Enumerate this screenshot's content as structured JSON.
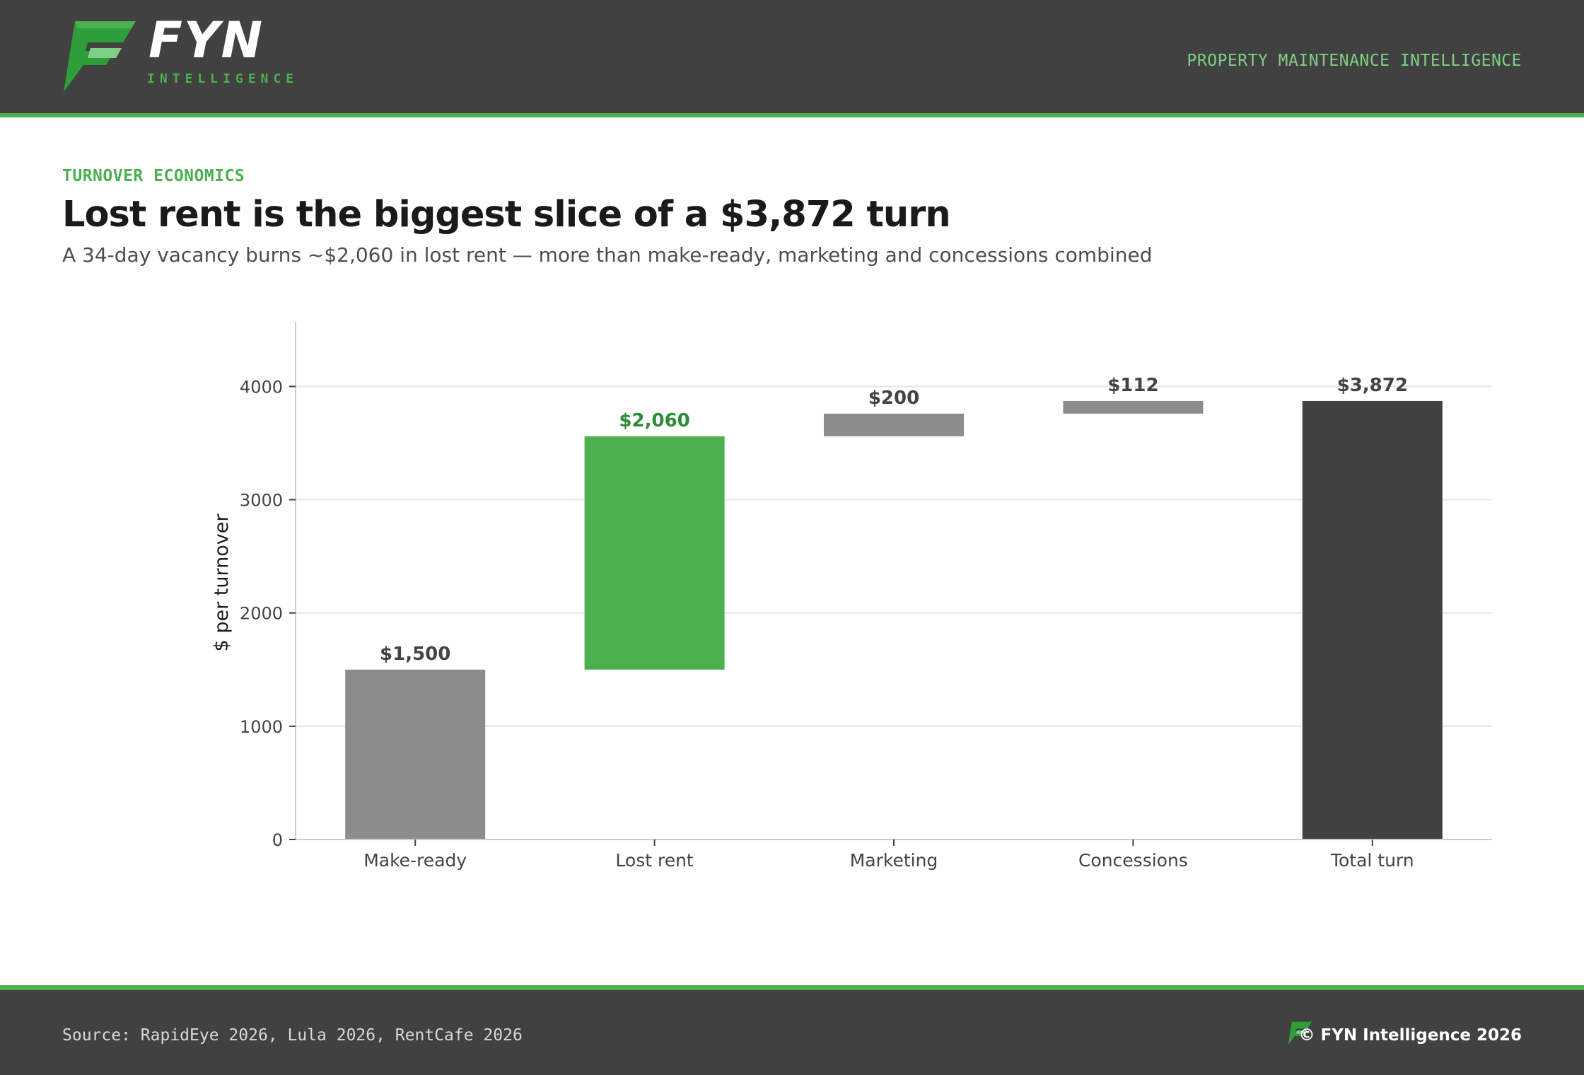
{
  "brand": {
    "name": "FYN",
    "sub": "INTELLIGENCE",
    "tagline": "PROPERTY MAINTENANCE INTELLIGENCE",
    "logo_icon": "fyn-logo-icon",
    "accent": "#4caf50",
    "dark": "#414141"
  },
  "eyebrow": "TURNOVER ECONOMICS",
  "title": "Lost rent is the biggest slice of a $3,872 turn",
  "subtitle": "A 34-day vacancy burns ~$2,060 in lost rent — more than make-ready, marketing and concessions combined",
  "chart_data": {
    "type": "bar",
    "subtype": "waterfall",
    "categories": [
      "Make-ready",
      "Lost rent",
      "Marketing",
      "Concessions",
      "Total turn"
    ],
    "values": [
      1500,
      2060,
      200,
      112,
      3872
    ],
    "value_labels": [
      "$1,500",
      "$2,060",
      "$200",
      "$112",
      "$3,872"
    ],
    "is_total": [
      false,
      false,
      false,
      false,
      true
    ],
    "bar_colors": [
      "#8c8c8c",
      "#4caf50",
      "#8c8c8c",
      "#8c8c8c",
      "#414141"
    ],
    "label_colors": [
      "#444444",
      "#2e8b37",
      "#444444",
      "#444444",
      "#444444"
    ],
    "ylabel": "$ per turnover",
    "xlabel": "",
    "ylim": [
      0,
      4571
    ],
    "yticks": [
      0,
      1000,
      2000,
      3000,
      4000
    ],
    "grid": true,
    "legend": "none"
  },
  "footer": {
    "source": "Source: RapidEye 2026, Lula 2026, RentCafe 2026",
    "copyright": "© FYN Intelligence 2026",
    "footer_icon": "fyn-mark-icon"
  }
}
